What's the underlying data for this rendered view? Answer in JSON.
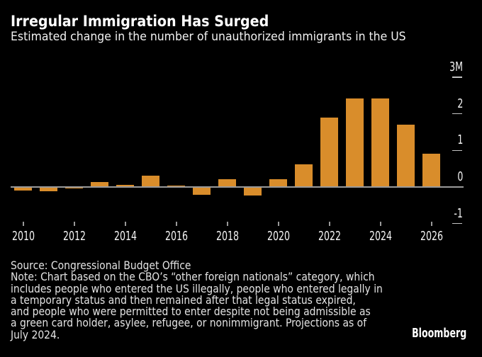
{
  "header": {
    "title": "Irregular Immigration Has Surged",
    "subtitle": "Estimated change in the number of unauthorized immigrants in the US"
  },
  "chart_data": {
    "type": "bar",
    "title": "Irregular Immigration Has Surged",
    "subtitle": "Estimated change in the number of unauthorized immigrants in the US",
    "x": [
      2010,
      2011,
      2012,
      2013,
      2014,
      2015,
      2016,
      2017,
      2018,
      2019,
      2020,
      2021,
      2022,
      2023,
      2024,
      2025,
      2026
    ],
    "values": [
      -0.09,
      -0.12,
      -0.03,
      0.14,
      0.05,
      0.3,
      0.04,
      -0.21,
      0.22,
      -0.23,
      0.21,
      0.61,
      1.9,
      2.41,
      2.41,
      1.71,
      0.91
    ],
    "unit": "M",
    "bar_color": "#d98d2b",
    "ylim": [
      -1.35,
      3.4
    ],
    "y_ticks": [
      {
        "label": "3M",
        "value": 3
      },
      {
        "label": "2",
        "value": 2
      },
      {
        "label": "1",
        "value": 1
      },
      {
        "label": "0",
        "value": 0
      },
      {
        "label": "-1",
        "value": -1
      }
    ],
    "x_tick_years": [
      2010,
      2012,
      2014,
      2016,
      2018,
      2020,
      2022,
      2024,
      2026
    ],
    "grid": "right-dashes",
    "legend": "none"
  },
  "footer": {
    "source": "Source: Congressional Budget Office",
    "note_lines": [
      "Note: Chart based on the CBO’s “other foreign nationals” category, which",
      "includes people who entered the US illegally, people who entered legally in",
      "a temporary status and then remained after that legal status expired,",
      "and people who were permitted to enter despite not being admissible as",
      "a green card holder, asylee, refugee, or nonimmigrant. Projections as of",
      "July 2024."
    ],
    "brand": "Bloomberg"
  }
}
